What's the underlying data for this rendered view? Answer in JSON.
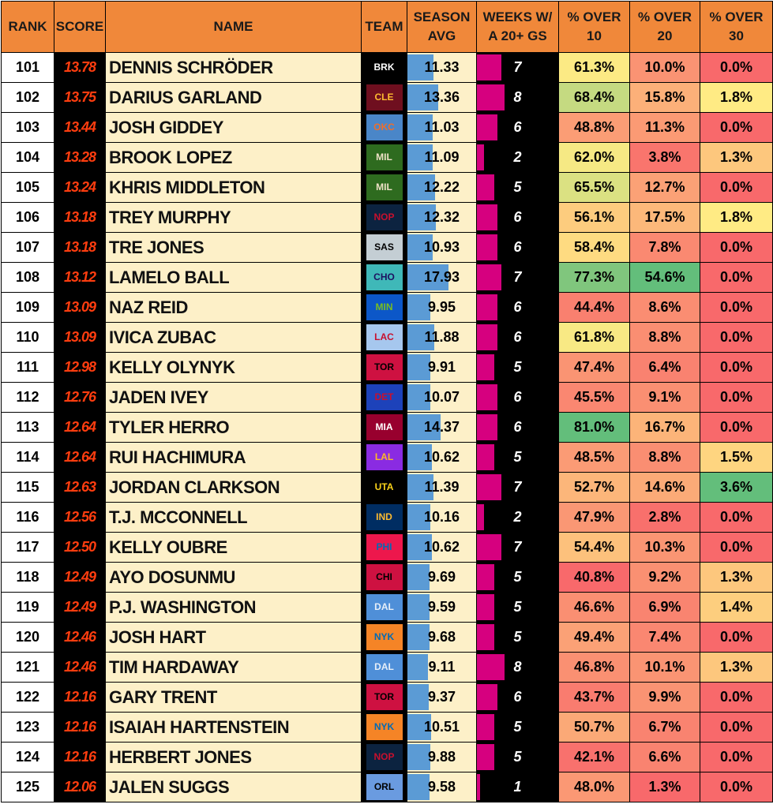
{
  "table": {
    "headers": [
      [
        "RANK"
      ],
      [
        "SCORE"
      ],
      [
        "NAME"
      ],
      [
        "TEAM"
      ],
      [
        "SEASON",
        "AVG"
      ],
      [
        "WEEKS W/",
        "A 20+ GS"
      ],
      [
        "% OVER",
        "10"
      ],
      [
        "% OVER",
        "20"
      ],
      [
        "% OVER",
        "30"
      ]
    ],
    "rows": [
      {
        "rank": 101,
        "score": "13.78",
        "name": "DENNIS SCHRÖDER",
        "team": "BRK",
        "team_bg": "#000000",
        "team_fg": "#ffffff",
        "season_avg": 11.33,
        "weeks": 7,
        "over10": "61.3%",
        "over20": "10.0%",
        "over30": "0.0%"
      },
      {
        "rank": 102,
        "score": "13.75",
        "name": "DARIUS GARLAND",
        "team": "CLE",
        "team_bg": "#6f0f1f",
        "team_fg": "#fdbb30",
        "season_avg": 13.36,
        "weeks": 8,
        "over10": "68.4%",
        "over20": "15.8%",
        "over30": "1.8%"
      },
      {
        "rank": 103,
        "score": "13.44",
        "name": "JOSH GIDDEY",
        "team": "OKC",
        "team_bg": "#4a86c8",
        "team_fg": "#ef6e2b",
        "season_avg": 11.03,
        "weeks": 6,
        "over10": "48.8%",
        "over20": "11.3%",
        "over30": "0.0%"
      },
      {
        "rank": 104,
        "score": "13.28",
        "name": "BROOK LOPEZ",
        "team": "MIL",
        "team_bg": "#2e6b1f",
        "team_fg": "#eee1c6",
        "season_avg": 11.09,
        "weeks": 2,
        "over10": "62.0%",
        "over20": "3.8%",
        "over30": "1.3%"
      },
      {
        "rank": 105,
        "score": "13.24",
        "name": "KHRIS MIDDLETON",
        "team": "MIL",
        "team_bg": "#2e6b1f",
        "team_fg": "#eee1c6",
        "season_avg": 12.22,
        "weeks": 5,
        "over10": "65.5%",
        "over20": "12.7%",
        "over30": "0.0%"
      },
      {
        "rank": 106,
        "score": "13.18",
        "name": "TREY MURPHY",
        "team": "NOP",
        "team_bg": "#0c2340",
        "team_fg": "#c8102e",
        "season_avg": 12.32,
        "weeks": 6,
        "over10": "56.1%",
        "over20": "17.5%",
        "over30": "1.8%"
      },
      {
        "rank": 107,
        "score": "13.18",
        "name": "TRE JONES",
        "team": "SAS",
        "team_bg": "#c4ced4",
        "team_fg": "#000000",
        "season_avg": 10.93,
        "weeks": 6,
        "over10": "58.4%",
        "over20": "7.8%",
        "over30": "0.0%"
      },
      {
        "rank": 108,
        "score": "13.12",
        "name": "LAMELO BALL",
        "team": "CHO",
        "team_bg": "#3fb8b8",
        "team_fg": "#1d1160",
        "season_avg": 17.93,
        "weeks": 7,
        "over10": "77.3%",
        "over20": "54.6%",
        "over30": "0.0%"
      },
      {
        "rank": 109,
        "score": "13.09",
        "name": "NAZ REID",
        "team": "MIN",
        "team_bg": "#0c57c8",
        "team_fg": "#78be20",
        "season_avg": 9.95,
        "weeks": 6,
        "over10": "44.4%",
        "over20": "8.6%",
        "over30": "0.0%"
      },
      {
        "rank": 110,
        "score": "13.09",
        "name": "IVICA ZUBAC",
        "team": "LAC",
        "team_bg": "#a6c7ee",
        "team_fg": "#c8102e",
        "season_avg": 11.88,
        "weeks": 6,
        "over10": "61.8%",
        "over20": "8.8%",
        "over30": "0.0%"
      },
      {
        "rank": 111,
        "score": "12.98",
        "name": "KELLY OLYNYK",
        "team": "TOR",
        "team_bg": "#ce1141",
        "team_fg": "#000000",
        "season_avg": 9.91,
        "weeks": 5,
        "over10": "47.4%",
        "over20": "6.4%",
        "over30": "0.0%"
      },
      {
        "rank": 112,
        "score": "12.76",
        "name": "JADEN IVEY",
        "team": "DET",
        "team_bg": "#1d42ba",
        "team_fg": "#c8102e",
        "season_avg": 10.07,
        "weeks": 6,
        "over10": "45.5%",
        "over20": "9.1%",
        "over30": "0.0%"
      },
      {
        "rank": 113,
        "score": "12.64",
        "name": "TYLER HERRO",
        "team": "MIA",
        "team_bg": "#98002e",
        "team_fg": "#ffffff",
        "season_avg": 14.37,
        "weeks": 6,
        "over10": "81.0%",
        "over20": "16.7%",
        "over30": "0.0%"
      },
      {
        "rank": 114,
        "score": "12.64",
        "name": "RUI HACHIMURA",
        "team": "LAL",
        "team_bg": "#8a2be2",
        "team_fg": "#fdb927",
        "season_avg": 10.62,
        "weeks": 5,
        "over10": "48.5%",
        "over20": "8.8%",
        "over30": "1.5%"
      },
      {
        "rank": 115,
        "score": "12.63",
        "name": "JORDAN CLARKSON",
        "team": "UTA",
        "team_bg": "#000000",
        "team_fg": "#f9d21a",
        "season_avg": 11.39,
        "weeks": 7,
        "over10": "52.7%",
        "over20": "14.6%",
        "over30": "3.6%"
      },
      {
        "rank": 116,
        "score": "12.56",
        "name": "T.J. MCCONNELL",
        "team": "IND",
        "team_bg": "#002d62",
        "team_fg": "#fdbb30",
        "season_avg": 10.16,
        "weeks": 2,
        "over10": "47.9%",
        "over20": "2.8%",
        "over30": "0.0%"
      },
      {
        "rank": 117,
        "score": "12.50",
        "name": "KELLY OUBRE",
        "team": "PHI",
        "team_bg": "#ed174c",
        "team_fg": "#006bb6",
        "season_avg": 10.62,
        "weeks": 7,
        "over10": "54.4%",
        "over20": "10.3%",
        "over30": "0.0%"
      },
      {
        "rank": 118,
        "score": "12.49",
        "name": "AYO DOSUNMU",
        "team": "CHI",
        "team_bg": "#ce1141",
        "team_fg": "#000000",
        "season_avg": 9.69,
        "weeks": 5,
        "over10": "40.8%",
        "over20": "9.2%",
        "over30": "1.3%"
      },
      {
        "rank": 119,
        "score": "12.49",
        "name": "P.J. WASHINGTON",
        "team": "DAL",
        "team_bg": "#4f8fd8",
        "team_fg": "#e6eef8",
        "season_avg": 9.59,
        "weeks": 5,
        "over10": "46.6%",
        "over20": "6.9%",
        "over30": "1.4%"
      },
      {
        "rank": 120,
        "score": "12.46",
        "name": "JOSH HART",
        "team": "NYK",
        "team_bg": "#f58426",
        "team_fg": "#006bb6",
        "season_avg": 9.68,
        "weeks": 5,
        "over10": "49.4%",
        "over20": "7.4%",
        "over30": "0.0%"
      },
      {
        "rank": 121,
        "score": "12.46",
        "name": "TIM HARDAWAY",
        "team": "DAL",
        "team_bg": "#4f8fd8",
        "team_fg": "#e6eef8",
        "season_avg": 9.11,
        "weeks": 8,
        "over10": "46.8%",
        "over20": "10.1%",
        "over30": "1.3%"
      },
      {
        "rank": 122,
        "score": "12.16",
        "name": "GARY TRENT",
        "team": "TOR",
        "team_bg": "#ce1141",
        "team_fg": "#000000",
        "season_avg": 9.37,
        "weeks": 6,
        "over10": "43.7%",
        "over20": "9.9%",
        "over30": "0.0%"
      },
      {
        "rank": 123,
        "score": "12.16",
        "name": "ISAIAH HARTENSTEIN",
        "team": "NYK",
        "team_bg": "#f58426",
        "team_fg": "#006bb6",
        "season_avg": 10.51,
        "weeks": 5,
        "over10": "50.7%",
        "over20": "6.7%",
        "over30": "0.0%"
      },
      {
        "rank": 124,
        "score": "12.16",
        "name": "HERBERT JONES",
        "team": "NOP",
        "team_bg": "#0c2340",
        "team_fg": "#c8102e",
        "season_avg": 9.88,
        "weeks": 5,
        "over10": "42.1%",
        "over20": "6.6%",
        "over30": "0.0%"
      },
      {
        "rank": 125,
        "score": "12.06",
        "name": "JALEN SUGGS",
        "team": "ORL",
        "team_bg": "#6a9be0",
        "team_fg": "#000000",
        "season_avg": 9.58,
        "weeks": 1,
        "over10": "48.0%",
        "over20": "1.3%",
        "over30": "0.0%"
      }
    ]
  }
}
